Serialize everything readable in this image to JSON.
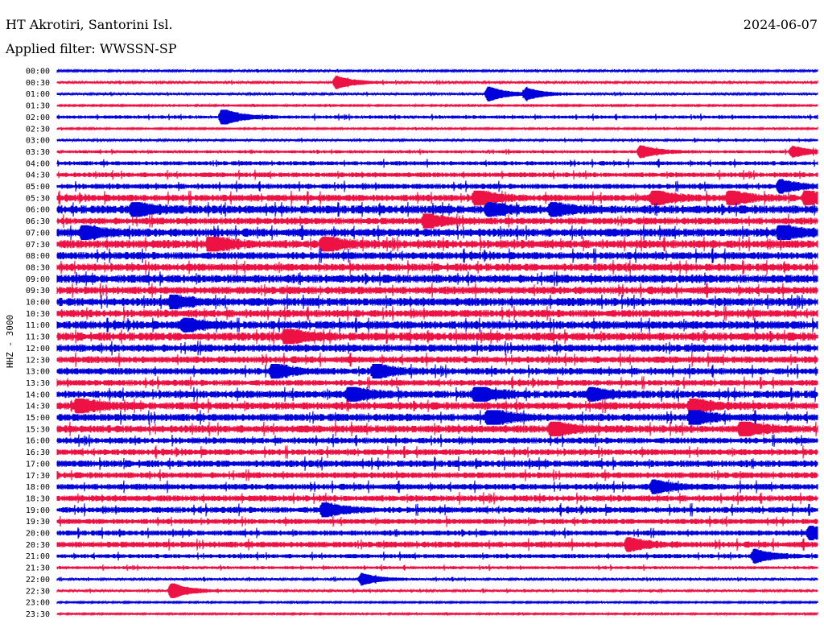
{
  "header": {
    "station": "HT Akrotiri, Santorini Isl.",
    "date": "2024-06-07",
    "filter": "Applied filter: WWSSN-SP"
  },
  "chart_data": {
    "type": "line",
    "title": "HT Akrotiri, Santorini Isl.",
    "ylabel": "HHZ - 3000",
    "rows": [
      "00:00",
      "00:30",
      "01:00",
      "01:30",
      "02:00",
      "02:30",
      "03:00",
      "03:30",
      "04:00",
      "04:30",
      "05:00",
      "05:30",
      "06:00",
      "06:30",
      "07:00",
      "07:30",
      "08:00",
      "08:30",
      "09:00",
      "09:30",
      "10:00",
      "10:30",
      "11:00",
      "11:30",
      "12:00",
      "12:30",
      "13:00",
      "13:30",
      "14:00",
      "14:30",
      "15:00",
      "15:30",
      "16:00",
      "16:30",
      "17:00",
      "17:30",
      "18:00",
      "18:30",
      "19:00",
      "19:30",
      "20:00",
      "20:30",
      "21:00",
      "21:30",
      "22:00",
      "22:30",
      "23:00",
      "23:30"
    ],
    "row_minutes": 30,
    "series_colors": [
      "#0000dd",
      "#ee1144"
    ],
    "noise_level": [
      0.12,
      0.15,
      0.15,
      0.1,
      0.22,
      0.1,
      0.15,
      0.2,
      0.28,
      0.32,
      0.35,
      0.45,
      0.55,
      0.45,
      0.55,
      0.55,
      0.5,
      0.5,
      0.55,
      0.5,
      0.55,
      0.5,
      0.55,
      0.55,
      0.5,
      0.45,
      0.45,
      0.4,
      0.5,
      0.5,
      0.5,
      0.5,
      0.4,
      0.4,
      0.45,
      0.4,
      0.4,
      0.4,
      0.4,
      0.35,
      0.35,
      0.4,
      0.28,
      0.2,
      0.15,
      0.15,
      0.1,
      0.1
    ],
    "events": [
      {
        "row": 1,
        "minute": 11.0,
        "amp": 1.2
      },
      {
        "row": 2,
        "minute": 17.0,
        "amp": 1.4
      },
      {
        "row": 2,
        "minute": 18.5,
        "amp": 1.0
      },
      {
        "row": 4,
        "minute": 6.5,
        "amp": 1.6
      },
      {
        "row": 7,
        "minute": 23.0,
        "amp": 1.1
      },
      {
        "row": 7,
        "minute": 29.0,
        "amp": 1.0
      },
      {
        "row": 10,
        "minute": 28.5,
        "amp": 1.2
      },
      {
        "row": 11,
        "minute": 16.5,
        "amp": 1.6
      },
      {
        "row": 11,
        "minute": 23.5,
        "amp": 1.5
      },
      {
        "row": 11,
        "minute": 26.5,
        "amp": 1.4
      },
      {
        "row": 11,
        "minute": 29.5,
        "amp": 1.3
      },
      {
        "row": 12,
        "minute": 3.0,
        "amp": 1.5
      },
      {
        "row": 12,
        "minute": 17.0,
        "amp": 1.2
      },
      {
        "row": 12,
        "minute": 19.5,
        "amp": 1.3
      },
      {
        "row": 13,
        "minute": 14.5,
        "amp": 1.5
      },
      {
        "row": 14,
        "minute": 1.0,
        "amp": 1.4
      },
      {
        "row": 14,
        "minute": 28.5,
        "amp": 1.5
      },
      {
        "row": 15,
        "minute": 6.0,
        "amp": 1.6
      },
      {
        "row": 15,
        "minute": 10.5,
        "amp": 1.4
      },
      {
        "row": 20,
        "minute": 4.5,
        "amp": 1.2
      },
      {
        "row": 22,
        "minute": 5.0,
        "amp": 1.3
      },
      {
        "row": 23,
        "minute": 9.0,
        "amp": 1.5
      },
      {
        "row": 26,
        "minute": 8.5,
        "amp": 1.5
      },
      {
        "row": 26,
        "minute": 12.5,
        "amp": 1.4
      },
      {
        "row": 28,
        "minute": 11.5,
        "amp": 1.6
      },
      {
        "row": 28,
        "minute": 16.5,
        "amp": 1.8
      },
      {
        "row": 28,
        "minute": 21.0,
        "amp": 1.3
      },
      {
        "row": 29,
        "minute": 0.8,
        "amp": 1.5
      },
      {
        "row": 29,
        "minute": 25.0,
        "amp": 1.4
      },
      {
        "row": 30,
        "minute": 17.0,
        "amp": 1.9
      },
      {
        "row": 30,
        "minute": 25.0,
        "amp": 1.4
      },
      {
        "row": 31,
        "minute": 19.5,
        "amp": 1.5
      },
      {
        "row": 31,
        "minute": 27.0,
        "amp": 1.5
      },
      {
        "row": 36,
        "minute": 23.5,
        "amp": 1.3
      },
      {
        "row": 38,
        "minute": 10.5,
        "amp": 1.4
      },
      {
        "row": 40,
        "minute": 29.7,
        "amp": 1.3
      },
      {
        "row": 41,
        "minute": 22.5,
        "amp": 1.2
      },
      {
        "row": 42,
        "minute": 27.5,
        "amp": 1.3
      },
      {
        "row": 44,
        "minute": 12.0,
        "amp": 1.1
      },
      {
        "row": 45,
        "minute": 4.5,
        "amp": 1.5
      }
    ]
  }
}
